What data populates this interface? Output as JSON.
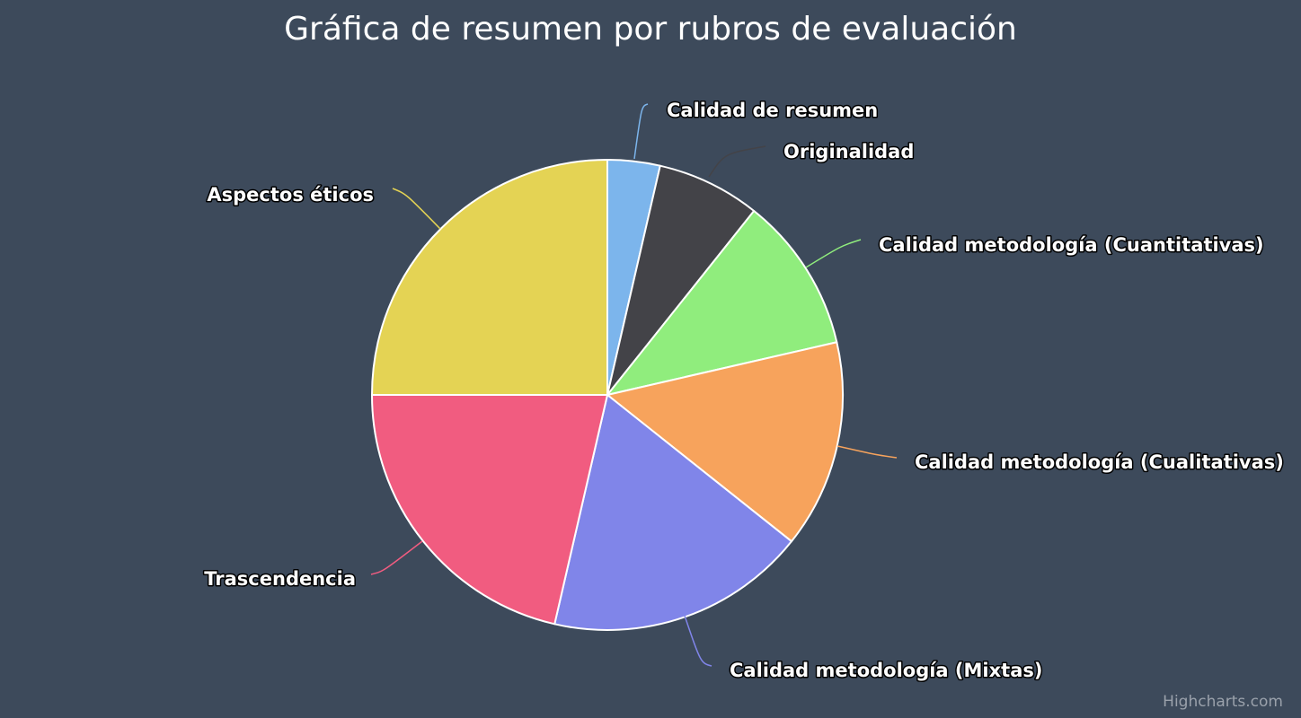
{
  "chart_data": {
    "type": "pie",
    "title": "Gráfica de resumen por rubros de evaluación",
    "series": [
      {
        "name": "Calidad de resumen",
        "value": 3.6,
        "color": "#7cb5ec"
      },
      {
        "name": "Originalidad",
        "value": 7.1,
        "color": "#434348"
      },
      {
        "name": "Calidad metodología (Cuantitativas)",
        "value": 10.7,
        "color": "#90ed7d"
      },
      {
        "name": "Calidad metodología (Cualitativas)",
        "value": 14.3,
        "color": "#f7a35c"
      },
      {
        "name": "Calidad metodología (Mixtas)",
        "value": 17.9,
        "color": "#8085e9"
      },
      {
        "name": "Trascendencia",
        "value": 21.4,
        "color": "#f15c80"
      },
      {
        "name": "Aspectos éticos",
        "value": 25.0,
        "color": "#e4d354"
      }
    ]
  },
  "credits": "Highcharts.com"
}
